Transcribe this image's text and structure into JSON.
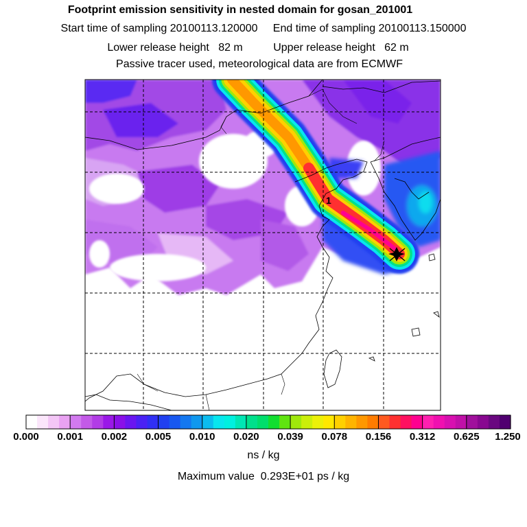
{
  "title": "Footprint emission sensitivity in nested domain for gosan_201001",
  "sampling_start": "Start time of sampling 20100113.120000",
  "sampling_end": "End time of sampling 20100113.150000",
  "release_lower": "Lower release height   82 m",
  "release_upper": "Upper release height   62 m",
  "tracer_note": "Passive tracer used, meteorological data are from ECMWF",
  "release_marker": "1",
  "colorbar": {
    "labels": [
      "0.000",
      "0.001",
      "0.002",
      "0.005",
      "0.010",
      "0.020",
      "0.039",
      "0.078",
      "0.156",
      "0.312",
      "0.625",
      "1.250"
    ],
    "colors": [
      "#ffffff",
      "#fbe6fb",
      "#f3c6f6",
      "#e9a2f2",
      "#d27aef",
      "#c35ae8",
      "#b23ce6",
      "#9a18e8",
      "#8a10e8",
      "#6a16f0",
      "#4a22f4",
      "#3030f4",
      "#2040f0",
      "#1858f0",
      "#1478f0",
      "#1098ee",
      "#0cbcee",
      "#08e6ee",
      "#00f0e0",
      "#00e6b4",
      "#00e08c",
      "#00de6c",
      "#12de30",
      "#60e410",
      "#a0e80c",
      "#cbee0a",
      "#ecf008",
      "#ffe800",
      "#ffd000",
      "#ffb400",
      "#ff9800",
      "#ff7c00",
      "#ff5a20",
      "#ff3030",
      "#ff1060",
      "#ff0090",
      "#ff20b0",
      "#f010b0",
      "#d810b0",
      "#c010a8",
      "#a0109c",
      "#880890",
      "#6a0880",
      "#500070"
    ],
    "units": "ns / kg"
  },
  "max_value": "Maximum value  0.293E+01 ps / kg"
}
